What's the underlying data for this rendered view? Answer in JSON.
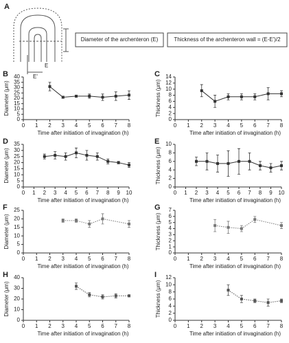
{
  "diagram": {
    "label": "A",
    "box_left": "Diameter of the archenteron (E)",
    "box_right": "Thickness of the archenteron wall = (E-E')/2",
    "mark_e": "E",
    "mark_e2": "E'"
  },
  "chart_data": [
    {
      "type": "line",
      "label": "B",
      "xlabel": "Time after initiation of invagination (h)",
      "ylabel": "Diameter (μm)",
      "xlim": [
        0,
        8
      ],
      "xticks": [
        0,
        1,
        2,
        3,
        4,
        5,
        6,
        7,
        8
      ],
      "ylim": [
        0,
        40
      ],
      "yticks": [
        0,
        5,
        10,
        15,
        20,
        25,
        30,
        35,
        40
      ],
      "x": [
        2,
        3,
        4,
        5,
        6,
        7,
        8
      ],
      "values": [
        31,
        21,
        22,
        22,
        21,
        22,
        23
      ],
      "errors": [
        4,
        1,
        1,
        2,
        3,
        4,
        4
      ],
      "color": "#333333",
      "dotted": false
    },
    {
      "type": "line",
      "label": "C",
      "xlabel": "Time after initiation of invagination (h)",
      "ylabel": "Thickness (μm)",
      "xlim": [
        0,
        8
      ],
      "xticks": [
        0,
        1,
        2,
        3,
        4,
        5,
        6,
        7,
        8
      ],
      "ylim": [
        0,
        14
      ],
      "yticks": [
        0,
        2,
        4,
        6,
        8,
        10,
        12,
        14
      ],
      "x": [
        2,
        3,
        4,
        5,
        6,
        7,
        8
      ],
      "values": [
        9.5,
        6,
        7.5,
        7.5,
        7.5,
        8.5,
        8.5
      ],
      "errors": [
        2,
        2,
        1,
        1,
        1,
        2,
        1
      ],
      "color": "#333333",
      "dotted": false
    },
    {
      "type": "line",
      "label": "D",
      "xlabel": "Time after initiation of invagination (h)",
      "ylabel": "Diameter (μm)",
      "xlim": [
        0,
        10
      ],
      "xticks": [
        0,
        1,
        2,
        3,
        4,
        5,
        6,
        7,
        8,
        9,
        10
      ],
      "ylim": [
        0,
        35
      ],
      "yticks": [
        0,
        5,
        10,
        15,
        20,
        25,
        30,
        35
      ],
      "x": [
        2,
        3,
        4,
        5,
        6,
        7,
        8,
        9,
        10
      ],
      "values": [
        25,
        26,
        25,
        28,
        26,
        25,
        21,
        20,
        18
      ],
      "errors": [
        2,
        3,
        3,
        4,
        4,
        3,
        2,
        1,
        2
      ],
      "color": "#333333",
      "dotted": false
    },
    {
      "type": "line",
      "label": "E",
      "xlabel": "Time after initiation of invagination (h)",
      "ylabel": "Thickness (μm)",
      "xlim": [
        0,
        10
      ],
      "xticks": [
        0,
        1,
        2,
        3,
        4,
        5,
        6,
        7,
        8,
        9,
        10
      ],
      "ylim": [
        0,
        10
      ],
      "yticks": [
        0,
        2,
        4,
        6,
        8,
        10
      ],
      "x": [
        2,
        3,
        4,
        5,
        6,
        7,
        8,
        9,
        10
      ],
      "values": [
        6,
        6,
        5.5,
        5.5,
        6,
        6,
        5,
        4.5,
        5
      ],
      "errors": [
        1,
        2,
        2,
        3,
        3,
        2,
        1,
        1,
        1
      ],
      "color": "#333333",
      "dotted": false
    },
    {
      "type": "line",
      "label": "F",
      "xlabel": "Time after initiation of invagination (h)",
      "ylabel": "Diameter (μm)",
      "xlim": [
        0,
        8
      ],
      "xticks": [
        0,
        1,
        2,
        3,
        4,
        5,
        6,
        7,
        8
      ],
      "ylim": [
        0,
        25
      ],
      "yticks": [
        0,
        5,
        10,
        15,
        20,
        25
      ],
      "x": [
        3,
        4,
        5,
        6,
        8
      ],
      "values": [
        19,
        19,
        17,
        20,
        17
      ],
      "errors": [
        1,
        1,
        2,
        3,
        2
      ],
      "color": "#777777",
      "dotted": true
    },
    {
      "type": "line",
      "label": "G",
      "xlabel": "Time after initiation of invagination (h)",
      "ylabel": "Thickness (μm)",
      "xlim": [
        0,
        8
      ],
      "xticks": [
        0,
        1,
        2,
        3,
        4,
        5,
        6,
        7,
        8
      ],
      "ylim": [
        0,
        7
      ],
      "yticks": [
        0,
        1,
        2,
        3,
        4,
        5,
        6,
        7
      ],
      "x": [
        3,
        4,
        5,
        6,
        8
      ],
      "values": [
        4.5,
        4.2,
        4,
        5.5,
        4.5
      ],
      "errors": [
        1,
        1,
        0.5,
        0.5,
        0.5
      ],
      "color": "#777777",
      "dotted": true
    },
    {
      "type": "line",
      "label": "H",
      "xlabel": "Time after initiation of invagination (h)",
      "ylabel": "Diameter (μm)",
      "xlim": [
        0,
        8
      ],
      "xticks": [
        0,
        1,
        2,
        3,
        4,
        5,
        6,
        7,
        8
      ],
      "ylim": [
        0,
        40
      ],
      "yticks": [
        0,
        10,
        20,
        30,
        40
      ],
      "x": [
        4,
        5,
        6,
        7,
        8
      ],
      "values": [
        32,
        24,
        22,
        23,
        23
      ],
      "errors": [
        3,
        2,
        2,
        2,
        1
      ],
      "color": "#555555",
      "dotted": true
    },
    {
      "type": "line",
      "label": "I",
      "xlabel": "Time after initiation of invagination (h)",
      "ylabel": "Thickness (μm)",
      "xlim": [
        0,
        8
      ],
      "xticks": [
        0,
        1,
        2,
        3,
        4,
        5,
        6,
        7,
        8
      ],
      "ylim": [
        0,
        12
      ],
      "yticks": [
        0,
        2,
        4,
        6,
        8,
        10,
        12
      ],
      "x": [
        4,
        5,
        6,
        7,
        8
      ],
      "values": [
        8.5,
        6,
        5.5,
        5,
        5.5
      ],
      "errors": [
        1.5,
        1,
        0.5,
        1,
        0.5
      ],
      "color": "#555555",
      "dotted": true
    }
  ]
}
